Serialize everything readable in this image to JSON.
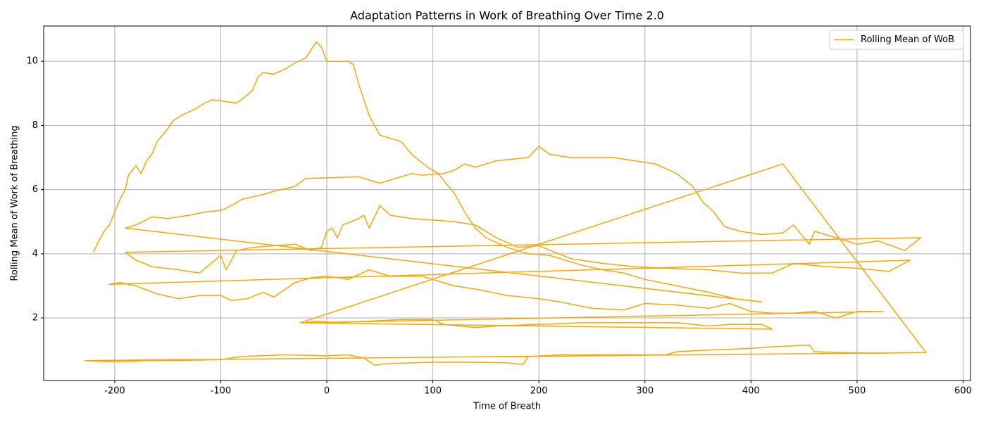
{
  "chart_data": {
    "type": "line",
    "title": "Adaptation Patterns in Work of Breathing Over Time 2.0",
    "x_label": "Time of Breath",
    "y_label": "Rolling Mean of Work of Breathing",
    "x": [
      -220,
      -215,
      -210,
      -205,
      -200,
      -195,
      -190,
      -187,
      -180,
      -175,
      -170,
      -165,
      -160,
      -150,
      -145,
      -135,
      -125,
      -115,
      -108,
      -85,
      -75,
      -70,
      -65,
      -60,
      -50,
      -40,
      -30,
      -20,
      -15,
      -10,
      -5,
      0,
      20,
      25,
      30,
      40,
      50,
      70,
      80,
      95,
      105,
      120,
      130,
      140,
      150,
      170,
      190,
      210,
      240,
      260,
      280,
      300,
      330,
      360,
      385,
      410,
      -190,
      -180,
      -165,
      -150,
      -130,
      -115,
      -100,
      -90,
      -80,
      -60,
      -50,
      -30,
      -20,
      30,
      50,
      70,
      80,
      90,
      110,
      120,
      130,
      140,
      160,
      190,
      200,
      210,
      230,
      270,
      290,
      310,
      330,
      345,
      355,
      365,
      375,
      390,
      410,
      430,
      440,
      455,
      460,
      480,
      500,
      520,
      545,
      560,
      -190,
      -180,
      -165,
      -140,
      -120,
      -100,
      -95,
      -85,
      -70,
      -50,
      -30,
      -15,
      -5,
      0,
      5,
      10,
      15,
      30,
      35,
      40,
      50,
      60,
      80,
      100,
      120,
      140,
      160,
      180,
      200,
      230,
      260,
      290,
      320,
      360,
      390,
      420,
      440,
      470,
      500,
      530,
      550,
      -205,
      -195,
      -180,
      -160,
      -140,
      -120,
      -100,
      -90,
      -75,
      -60,
      -50,
      -30,
      -15,
      0,
      20,
      40,
      60,
      90,
      120,
      140,
      170,
      200,
      220,
      250,
      280,
      300,
      330,
      360,
      380,
      400,
      420,
      440,
      460,
      480,
      500,
      525,
      -20,
      -10,
      10,
      40,
      70,
      100,
      110,
      140,
      160,
      200,
      240,
      270,
      300,
      330,
      360,
      380,
      410,
      420,
      -25,
      430,
      565,
      -228,
      -200,
      -170,
      -130,
      -100,
      -80,
      -40,
      0,
      20,
      35,
      45,
      60,
      100,
      140,
      170,
      185,
      190,
      220,
      260,
      300,
      320,
      330,
      360,
      400,
      420,
      455,
      460,
      480,
      520,
      565
    ],
    "series": [
      {
        "name": "Rolling Mean of WoB",
        "color": "#ffa500",
        "values": [
          4.05,
          4.4,
          4.7,
          4.9,
          5.3,
          5.7,
          6.0,
          6.45,
          6.75,
          6.5,
          6.9,
          7.1,
          7.5,
          7.9,
          8.15,
          8.35,
          8.5,
          8.7,
          8.8,
          8.7,
          8.95,
          9.1,
          9.5,
          9.65,
          9.6,
          9.75,
          9.95,
          10.1,
          10.35,
          10.6,
          10.45,
          10.0,
          10.0,
          9.9,
          9.3,
          8.3,
          7.7,
          7.5,
          7.1,
          6.7,
          6.5,
          5.9,
          5.3,
          4.8,
          4.5,
          4.2,
          4.0,
          3.95,
          3.65,
          3.5,
          3.4,
          3.2,
          3.0,
          2.8,
          2.6,
          2.5,
          4.8,
          4.9,
          5.15,
          5.1,
          5.2,
          5.3,
          5.35,
          5.5,
          5.7,
          5.85,
          5.95,
          6.1,
          6.35,
          6.4,
          6.2,
          6.4,
          6.5,
          6.45,
          6.5,
          6.6,
          6.8,
          6.7,
          6.9,
          7.0,
          7.35,
          7.1,
          7.0,
          7.0,
          6.9,
          6.8,
          6.5,
          6.1,
          5.6,
          5.3,
          4.85,
          4.7,
          4.6,
          4.65,
          4.9,
          4.3,
          4.7,
          4.5,
          4.3,
          4.4,
          4.1,
          4.5,
          4.05,
          3.8,
          3.6,
          3.5,
          3.4,
          3.95,
          3.5,
          4.1,
          4.2,
          4.25,
          4.3,
          4.1,
          4.2,
          4.7,
          4.8,
          4.5,
          4.9,
          5.1,
          5.2,
          4.8,
          5.5,
          5.2,
          5.1,
          5.05,
          5.0,
          4.9,
          4.5,
          4.2,
          4.25,
          3.85,
          3.7,
          3.6,
          3.55,
          3.5,
          3.4,
          3.4,
          3.7,
          3.6,
          3.55,
          3.45,
          3.8,
          3.05,
          3.1,
          3.0,
          2.75,
          2.6,
          2.7,
          2.7,
          2.55,
          2.6,
          2.8,
          2.65,
          3.1,
          3.25,
          3.3,
          3.2,
          3.5,
          3.3,
          3.3,
          3.0,
          2.9,
          2.7,
          2.6,
          2.5,
          2.3,
          2.25,
          2.45,
          2.4,
          2.3,
          2.45,
          2.2,
          2.15,
          2.15,
          2.2,
          2.0,
          2.2,
          2.2,
          1.85,
          1.9,
          1.85,
          1.9,
          1.95,
          1.95,
          1.8,
          1.7,
          1.75,
          1.8,
          1.85,
          1.85,
          1.85,
          1.85,
          1.75,
          1.8,
          1.8,
          1.65,
          1.85,
          6.8,
          0.92,
          0.67,
          0.63,
          0.67,
          0.68,
          0.7,
          0.8,
          0.85,
          0.82,
          0.85,
          0.75,
          0.53,
          0.58,
          0.62,
          0.62,
          0.6,
          0.55,
          0.8,
          0.85,
          0.85,
          0.85,
          0.85,
          0.95,
          1.0,
          1.05,
          1.1,
          1.15,
          0.95,
          0.92,
          0.9,
          0.92
        ]
      }
    ],
    "xlim": [
      -267,
      607
    ],
    "xticks": [
      -200,
      -100,
      0,
      100,
      200,
      300,
      400,
      500,
      600
    ],
    "ylim": [
      0.05,
      11.1
    ],
    "yticks": [
      2,
      4,
      6,
      8,
      10
    ],
    "grid": true,
    "legend": "upper right"
  }
}
